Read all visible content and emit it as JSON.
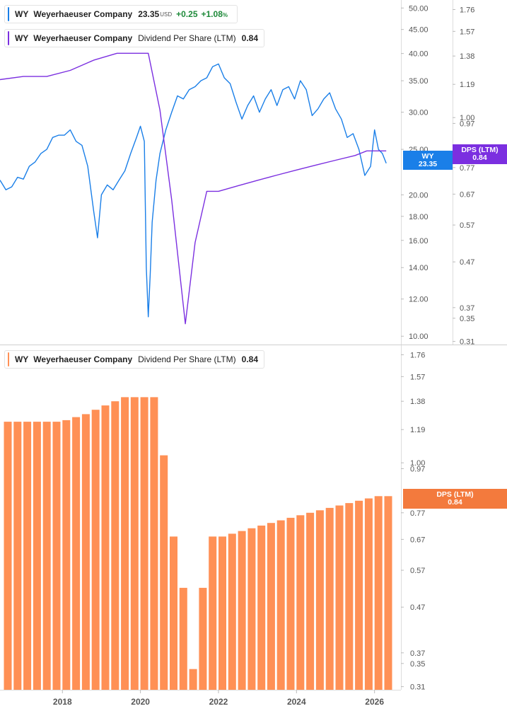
{
  "colors": {
    "price_line": "#1a7fe8",
    "dps_line": "#7b2fe0",
    "dps_bar": "#ff9055",
    "badge_price": "#1a7fe8",
    "badge_dps_top": "#7b2fe0",
    "badge_dps_bottom": "#f37a3d",
    "axis_text": "#555555",
    "divider": "#cfcfcf"
  },
  "legend_top": {
    "ticker": "WY",
    "name": "Weyerhaeuser Company",
    "price": "23.35",
    "unit": "USD",
    "change": "+0.25",
    "change_pct": "+1.08",
    "pct_sign": "%"
  },
  "legend_dps_top": {
    "ticker": "WY",
    "name": "Weyerhaeuser Company",
    "metric": "Dividend Per Share (LTM)",
    "value": "0.84"
  },
  "legend_dps_bottom": {
    "ticker": "WY",
    "name": "Weyerhaeuser Company",
    "metric": "Dividend Per Share (LTM)",
    "value": "0.84"
  },
  "badges": {
    "price": {
      "label": "WY",
      "value": "23.35"
    },
    "dps_top": {
      "label": "DPS (LTM)",
      "value": "0.84"
    },
    "dps_bottom": {
      "label": "DPS (LTM)",
      "value": "0.84"
    }
  },
  "chart_data": [
    {
      "type": "line",
      "title": "",
      "x_ticks": [
        "2018",
        "2020",
        "2022",
        "2024",
        "2026"
      ],
      "price_axis": {
        "scale": "log",
        "ylim": [
          9.6,
          52
        ],
        "ticks": [
          "50.00",
          "45.00",
          "40.00",
          "35.00",
          "30.00",
          "25.00",
          "20.00",
          "18.00",
          "16.00",
          "14.00",
          "12.00",
          "10.00"
        ]
      },
      "dps_axis": {
        "scale": "log",
        "ylim": [
          0.305,
          1.85
        ],
        "ticks": [
          "1.76",
          "1.57",
          "1.38",
          "1.19",
          "1.00",
          "0.97",
          "0.77",
          "0.67",
          "0.57",
          "0.47",
          "0.37",
          "0.35",
          "0.31"
        ]
      },
      "series": [
        {
          "name": "WY",
          "axis": "price",
          "x": [
            2016.4,
            2016.55,
            2016.7,
            2016.85,
            2017.0,
            2017.15,
            2017.3,
            2017.45,
            2017.6,
            2017.75,
            2017.9,
            2018.05,
            2018.2,
            2018.35,
            2018.5,
            2018.65,
            2018.8,
            2018.9,
            2019.0,
            2019.15,
            2019.3,
            2019.45,
            2019.6,
            2019.75,
            2019.9,
            2020.0,
            2020.1,
            2020.15,
            2020.2,
            2020.25,
            2020.3,
            2020.4,
            2020.5,
            2020.65,
            2020.8,
            2020.95,
            2021.1,
            2021.25,
            2021.4,
            2021.55,
            2021.7,
            2021.85,
            2022.0,
            2022.15,
            2022.3,
            2022.45,
            2022.6,
            2022.75,
            2022.9,
            2023.05,
            2023.2,
            2023.35,
            2023.5,
            2023.65,
            2023.8,
            2023.95,
            2024.1,
            2024.25,
            2024.4,
            2024.55,
            2024.7,
            2024.85,
            2025.0,
            2025.15,
            2025.3,
            2025.45,
            2025.6,
            2025.75,
            2025.9,
            2026.0,
            2026.1,
            2026.2,
            2026.3
          ],
          "values": [
            21.5,
            20.5,
            20.8,
            21.8,
            21.6,
            23.0,
            23.5,
            24.5,
            25.0,
            26.5,
            26.8,
            26.8,
            27.5,
            26.0,
            25.5,
            23.0,
            18.5,
            16.2,
            20.0,
            21.0,
            20.5,
            21.5,
            22.5,
            24.5,
            26.5,
            28.0,
            26.0,
            14.0,
            11.0,
            13.5,
            17.5,
            21.5,
            24.5,
            27.5,
            30.0,
            32.5,
            32.0,
            33.5,
            34.0,
            35.0,
            35.5,
            37.5,
            38.0,
            35.5,
            34.5,
            31.5,
            29.0,
            31.0,
            32.5,
            30.0,
            32.0,
            33.5,
            31.0,
            33.5,
            34.0,
            32.0,
            35.0,
            33.5,
            29.5,
            30.5,
            32.0,
            33.0,
            30.5,
            29.0,
            26.5,
            27.0,
            25.0,
            22.0,
            23.0,
            27.5,
            25.0,
            24.5,
            23.35
          ]
        },
        {
          "name": "DPS (LTM)",
          "axis": "dps",
          "x": [
            2016.4,
            2017.0,
            2017.6,
            2018.2,
            2018.8,
            2019.4,
            2020.0,
            2020.2,
            2020.5,
            2020.8,
            2021.15,
            2021.4,
            2021.7,
            2022.0,
            2022.5,
            2023.0,
            2023.5,
            2024.0,
            2024.5,
            2025.0,
            2025.5,
            2025.8,
            2026.1,
            2026.3
          ],
          "values": [
            1.22,
            1.24,
            1.24,
            1.28,
            1.35,
            1.4,
            1.4,
            1.4,
            1.04,
            0.65,
            0.34,
            0.52,
            0.68,
            0.68,
            0.7,
            0.72,
            0.74,
            0.76,
            0.78,
            0.8,
            0.82,
            0.84,
            0.84,
            0.84
          ]
        }
      ]
    },
    {
      "type": "bar",
      "title": "",
      "x_ticks": [
        "2018",
        "2020",
        "2022",
        "2024",
        "2026"
      ],
      "y_axis": {
        "scale": "log",
        "ylim": [
          0.305,
          1.85
        ],
        "ticks": [
          "1.76",
          "1.57",
          "1.38",
          "1.19",
          "1.00",
          "0.97",
          "0.77",
          "0.67",
          "0.57",
          "0.47",
          "0.37",
          "0.35",
          "0.31"
        ]
      },
      "series": [
        {
          "name": "Dividend Per Share (LTM)",
          "x": [
            2016.6,
            2016.85,
            2017.1,
            2017.35,
            2017.6,
            2017.85,
            2018.1,
            2018.35,
            2018.6,
            2018.85,
            2019.1,
            2019.35,
            2019.6,
            2019.85,
            2020.1,
            2020.35,
            2020.6,
            2020.85,
            2021.1,
            2021.35,
            2021.6,
            2021.85,
            2022.1,
            2022.35,
            2022.6,
            2022.85,
            2023.1,
            2023.35,
            2023.6,
            2023.85,
            2024.1,
            2024.35,
            2024.6,
            2024.85,
            2025.1,
            2025.35,
            2025.6,
            2025.85,
            2026.1,
            2026.35
          ],
          "values": [
            1.24,
            1.24,
            1.24,
            1.24,
            1.24,
            1.24,
            1.25,
            1.27,
            1.29,
            1.32,
            1.35,
            1.38,
            1.41,
            1.41,
            1.41,
            1.41,
            1.04,
            0.68,
            0.52,
            0.34,
            0.52,
            0.68,
            0.68,
            0.69,
            0.7,
            0.71,
            0.72,
            0.73,
            0.74,
            0.75,
            0.76,
            0.77,
            0.78,
            0.79,
            0.8,
            0.81,
            0.82,
            0.83,
            0.84,
            0.84
          ]
        }
      ]
    }
  ]
}
